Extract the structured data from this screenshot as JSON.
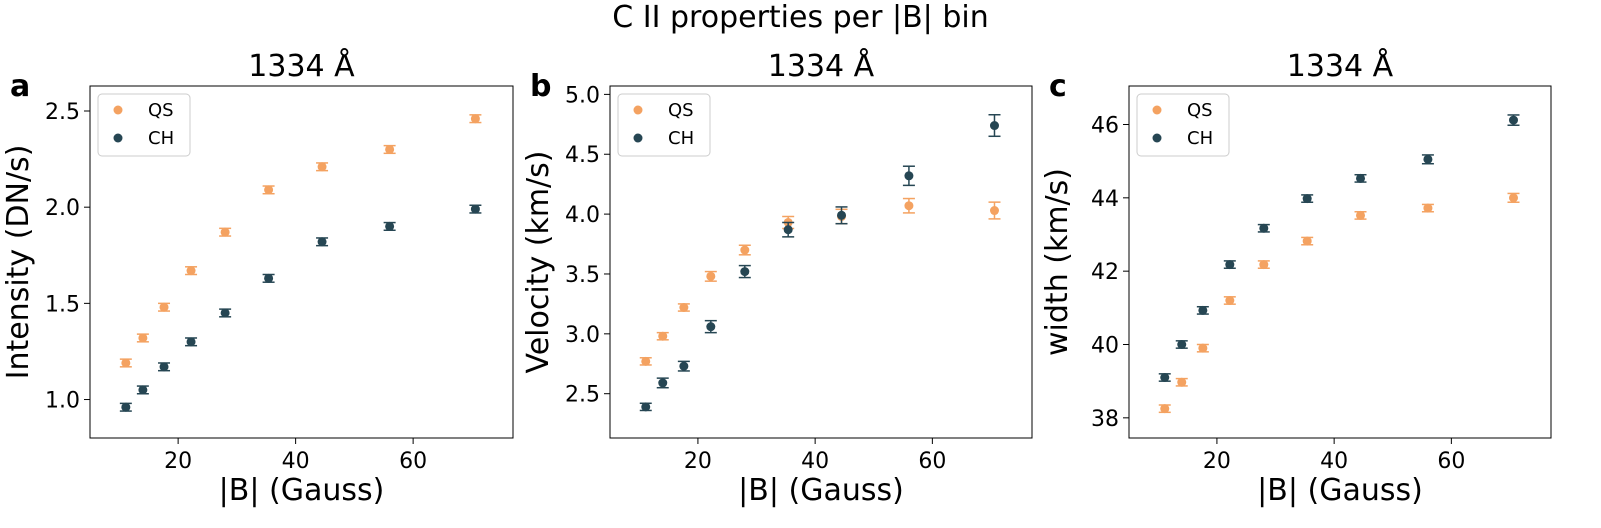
{
  "figure": {
    "title": "C II properties per |B| bin"
  },
  "colors": {
    "QS": "#f4a261",
    "CH": "#264653"
  },
  "chart_data": [
    {
      "type": "scatter",
      "panel_label": "a",
      "title": "1334 Å",
      "xlabel": "|B| (Gauss)",
      "ylabel": "Intensity (DN/s)",
      "xlim": [
        5,
        77
      ],
      "ylim": [
        0.8,
        2.63
      ],
      "xticks": [
        20,
        40,
        60
      ],
      "yticks": [
        1.0,
        1.5,
        2.0,
        2.5
      ],
      "xtick_labels": [
        "20",
        "40",
        "60"
      ],
      "ytick_labels": [
        "1.0",
        "1.5",
        "2.0",
        "2.5"
      ],
      "legend": "top-left",
      "grid": false,
      "x": [
        11.1,
        14.0,
        17.6,
        22.2,
        28.0,
        35.4,
        44.5,
        56.0,
        70.6
      ],
      "series": [
        {
          "name": "QS",
          "values": [
            1.19,
            1.32,
            1.48,
            1.67,
            1.87,
            2.09,
            2.21,
            2.3,
            2.46
          ],
          "err": [
            0.02,
            0.02,
            0.02,
            0.02,
            0.02,
            0.02,
            0.02,
            0.02,
            0.02
          ]
        },
        {
          "name": "CH",
          "values": [
            0.96,
            1.05,
            1.17,
            1.3,
            1.45,
            1.63,
            1.82,
            1.9,
            1.99
          ],
          "err": [
            0.02,
            0.02,
            0.02,
            0.02,
            0.02,
            0.02,
            0.02,
            0.02,
            0.02
          ]
        }
      ]
    },
    {
      "type": "scatter",
      "panel_label": "b",
      "title": "1334 Å",
      "xlabel": "|B| (Gauss)",
      "ylabel": "Velocity (km/s)",
      "xlim": [
        5,
        77
      ],
      "ylim": [
        2.13,
        5.07
      ],
      "xticks": [
        20,
        40,
        60
      ],
      "yticks": [
        2.5,
        3.0,
        3.5,
        4.0,
        4.5,
        5.0
      ],
      "xtick_labels": [
        "20",
        "40",
        "60"
      ],
      "ytick_labels": [
        "2.5",
        "3.0",
        "3.5",
        "4.0",
        "4.5",
        "5.0"
      ],
      "legend": "top-left",
      "grid": false,
      "x": [
        11.1,
        14.0,
        17.6,
        22.2,
        28.0,
        35.4,
        44.5,
        56.0,
        70.6
      ],
      "series": [
        {
          "name": "QS",
          "values": [
            2.77,
            2.98,
            3.22,
            3.48,
            3.7,
            3.93,
            3.98,
            4.07,
            4.03
          ],
          "err": [
            0.03,
            0.03,
            0.03,
            0.04,
            0.04,
            0.05,
            0.06,
            0.06,
            0.07
          ]
        },
        {
          "name": "CH",
          "values": [
            2.39,
            2.59,
            2.73,
            3.06,
            3.52,
            3.87,
            3.99,
            4.32,
            4.74
          ],
          "err": [
            0.03,
            0.04,
            0.04,
            0.05,
            0.05,
            0.06,
            0.07,
            0.08,
            0.09
          ]
        }
      ]
    },
    {
      "type": "scatter",
      "panel_label": "c",
      "title": "1334 Å",
      "xlabel": "|B| (Gauss)",
      "ylabel": "width (km/s)",
      "xlim": [
        5,
        77
      ],
      "ylim": [
        37.45,
        47.05
      ],
      "xticks": [
        20,
        40,
        60
      ],
      "yticks": [
        38,
        40,
        42,
        44,
        46
      ],
      "xtick_labels": [
        "20",
        "40",
        "60"
      ],
      "ytick_labels": [
        "38",
        "40",
        "42",
        "44",
        "46"
      ],
      "legend": "top-left",
      "grid": false,
      "x": [
        11.1,
        14.0,
        17.6,
        22.2,
        28.0,
        35.4,
        44.5,
        56.0,
        70.6
      ],
      "series": [
        {
          "name": "QS",
          "values": [
            38.25,
            38.97,
            39.9,
            41.2,
            42.18,
            42.82,
            43.52,
            43.72,
            44.0
          ],
          "err": [
            0.1,
            0.1,
            0.1,
            0.1,
            0.1,
            0.1,
            0.1,
            0.1,
            0.12
          ]
        },
        {
          "name": "CH",
          "values": [
            39.1,
            40.0,
            40.93,
            42.18,
            43.17,
            43.98,
            44.53,
            45.05,
            46.12
          ],
          "err": [
            0.1,
            0.1,
            0.1,
            0.1,
            0.1,
            0.1,
            0.1,
            0.12,
            0.14
          ]
        }
      ]
    }
  ]
}
